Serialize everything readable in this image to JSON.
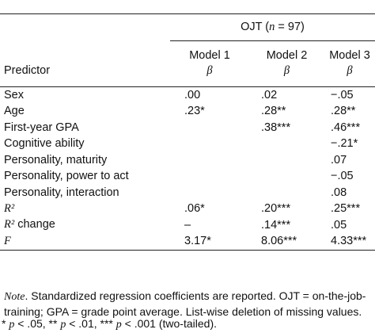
{
  "table": {
    "group_header": [
      "OJT (",
      "n",
      " = 97)"
    ],
    "stub_header": "Predictor",
    "columns": [
      "Model 1",
      "Model 2",
      "Model 3"
    ],
    "column_symbol": [
      "β",
      "β",
      "β"
    ],
    "rows": [
      [
        "Sex",
        ".00",
        ".02",
        "−.05"
      ],
      [
        "Age",
        ".23*",
        ".28**",
        ".28**"
      ],
      [
        "First-year GPA",
        "",
        ".38***",
        ".46***"
      ],
      [
        "Cognitive ability",
        "",
        "",
        "−.21*"
      ],
      [
        "Personality, maturity",
        "",
        "",
        ".07"
      ],
      [
        "Personality, power to act",
        "",
        "",
        "−.05"
      ],
      [
        "Personality, interaction",
        "",
        "",
        ".08"
      ],
      [
        "R²",
        ".06*",
        ".20***",
        ".25***"
      ],
      [
        [
          "R²",
          " change"
        ],
        "–",
        ".14***",
        ".05"
      ],
      [
        "F",
        "3.17*",
        "8.06***",
        "4.33***"
      ]
    ]
  },
  "note": [
    "Note",
    ". Standardized regression coefficients are reported. OJT = on-the-job-training; GPA = grade point average. List-wise deletion of missing values."
  ],
  "footnote": [
    "* ",
    "p",
    " < .05, ** ",
    "p",
    " < .01, *** ",
    "p",
    " < .001 (two-tailed)."
  ]
}
